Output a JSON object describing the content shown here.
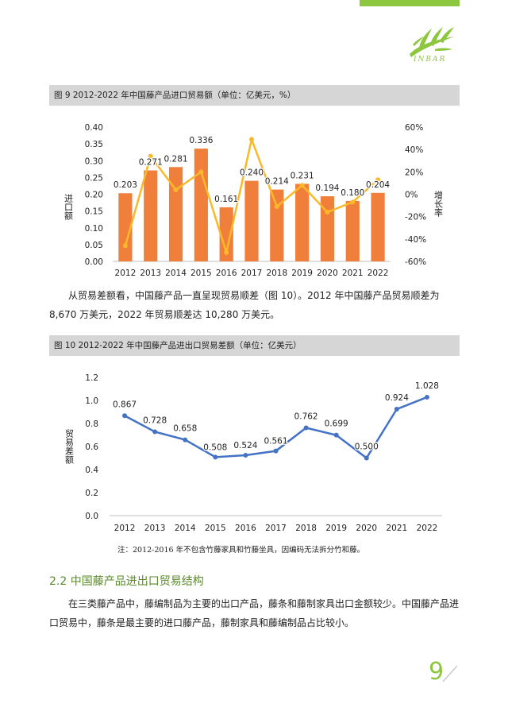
{
  "logo": {
    "text": "INBAR"
  },
  "figure9": {
    "title": "图 9    2012-2022 年中国藤产品进口贸易额（单位：亿美元，%）"
  },
  "figure10": {
    "title": "图 10    2012-2022 年中国藤产品进出口贸易差额（单位：亿美元）"
  },
  "paragraph1": "从贸易差额看，中国藤产品一直呈现贸易顺差（图 10）。2012 年中国藤产品贸易顺差为 8,670 万美元，2022 年贸易顺差达 10,280 万美元。",
  "note": "注：2012-2016 年不包含竹藤家具和竹藤坐具，因编码无法拆分竹和藤。",
  "section": {
    "heading": "2.2 中国藤产品进出口贸易结构"
  },
  "paragraph2": "在三类藤产品中，藤编制品为主要的出口产品，藤条和藤制家具出口金额较少。中国藤产品进口贸易中，藤条是最主要的进口藤产品，藤制家具和藤编制品占比较小。",
  "page": {
    "number": "9"
  },
  "colors": {
    "bar": "#f07f3c",
    "growth_line": "#f9b928",
    "balance_line": "#4472c4",
    "accent": "#8dc63f"
  },
  "chart_data": [
    {
      "type": "bar",
      "categories": [
        "2012",
        "2013",
        "2014",
        "2015",
        "2016",
        "2017",
        "2018",
        "2019",
        "2020",
        "2021",
        "2022"
      ],
      "series": [
        {
          "values": [
            0.203,
            0.271,
            0.281,
            0.336,
            0.161,
            0.24,
            0.214,
            0.231,
            0.194,
            0.18,
            0.204
          ],
          "axis": "left",
          "kind": "bar"
        },
        {
          "values": [
            -46,
            34,
            4,
            20,
            -52,
            49,
            -11,
            8,
            -16,
            -7,
            13
          ],
          "axis": "right",
          "kind": "line"
        }
      ],
      "ylabel": "进口额",
      "y2label": "增长率",
      "ylim": [
        0,
        0.4
      ],
      "y2lim": [
        -60,
        60
      ],
      "yticks": [
        "0.00",
        "0.05",
        "0.10",
        "0.15",
        "0.20",
        "0.25",
        "0.30",
        "0.35",
        "0.40"
      ],
      "y2ticks": [
        "-60%",
        "-40%",
        "-20%",
        "0%",
        "20%",
        "40%",
        "60%"
      ],
      "data_labels": [
        "0.203",
        "0.271",
        "0.281",
        "0.336",
        "0.161",
        "0.240",
        "0.214",
        "0.231",
        "0.194",
        "0.180",
        "0.204"
      ]
    },
    {
      "type": "line",
      "categories": [
        "2012",
        "2013",
        "2014",
        "2015",
        "2016",
        "2017",
        "2018",
        "2019",
        "2020",
        "2021",
        "2022"
      ],
      "series": [
        {
          "values": [
            0.867,
            0.728,
            0.658,
            0.508,
            0.524,
            0.561,
            0.762,
            0.699,
            0.5,
            0.924,
            1.028
          ]
        }
      ],
      "ylabel": "贸易差额",
      "ylim": [
        0,
        1.2
      ],
      "yticks": [
        "0.0",
        "0.2",
        "0.4",
        "0.6",
        "0.8",
        "1.0",
        "1.2"
      ],
      "data_labels": [
        "0.867",
        "0.728",
        "0.658",
        "0.508",
        "0.524",
        "0.561",
        "0.762",
        "0.699",
        "0.500",
        "0.924",
        "1.028"
      ]
    }
  ]
}
